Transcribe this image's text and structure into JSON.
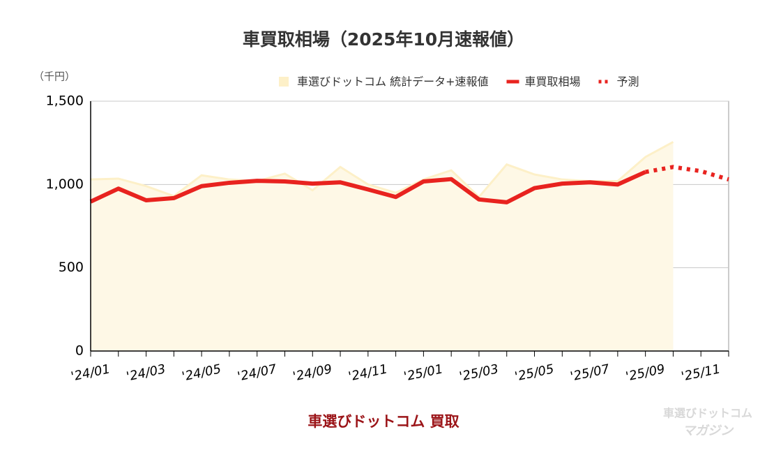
{
  "chart_data": {
    "type": "line",
    "title": "車買取相場（2025年10月速報値）",
    "y_label": "（千円）",
    "source": "車選びドットコム 買取",
    "watermark": [
      "車選びドットコム",
      "マガジン"
    ],
    "categories": [
      "'24/01",
      null,
      "'24/03",
      null,
      "'24/05",
      null,
      "'24/07",
      null,
      "'24/09",
      null,
      "'24/11",
      null,
      "'25/01",
      null,
      "'25/03",
      null,
      "'25/05",
      null,
      "'25/07",
      null,
      "'25/09",
      null,
      "'25/11",
      null
    ],
    "series": [
      {
        "name": "車選びドットコム 統計データ+速報値",
        "style": "area",
        "color": "#fdf0c8",
        "fill": "#fef8e6",
        "values": [
          1030,
          1035,
          990,
          930,
          1055,
          1030,
          1020,
          1065,
          965,
          1105,
          1000,
          950,
          1030,
          1085,
          925,
          1120,
          1060,
          1030,
          1020,
          1020,
          1165,
          1255,
          null,
          null
        ]
      },
      {
        "name": "車買取相場",
        "style": "solid",
        "color": "#e8231f",
        "values": [
          897,
          975,
          905,
          918,
          990,
          1010,
          1022,
          1018,
          1005,
          1013,
          970,
          925,
          1018,
          1032,
          910,
          893,
          978,
          1005,
          1013,
          1000,
          1075,
          null,
          null,
          null
        ]
      },
      {
        "name": "予測",
        "style": "dotted",
        "color": "#e8231f",
        "values": [
          null,
          null,
          null,
          null,
          null,
          null,
          null,
          null,
          null,
          null,
          null,
          null,
          null,
          null,
          null,
          null,
          null,
          null,
          null,
          null,
          1075,
          1105,
          1080,
          1030
        ]
      }
    ],
    "ylim": [
      0,
      1500
    ],
    "yticks": [
      0,
      500,
      {
        "value": 1000,
        "label": "1,000"
      },
      {
        "value": 1500,
        "label": "1,500"
      }
    ],
    "grid": true
  }
}
